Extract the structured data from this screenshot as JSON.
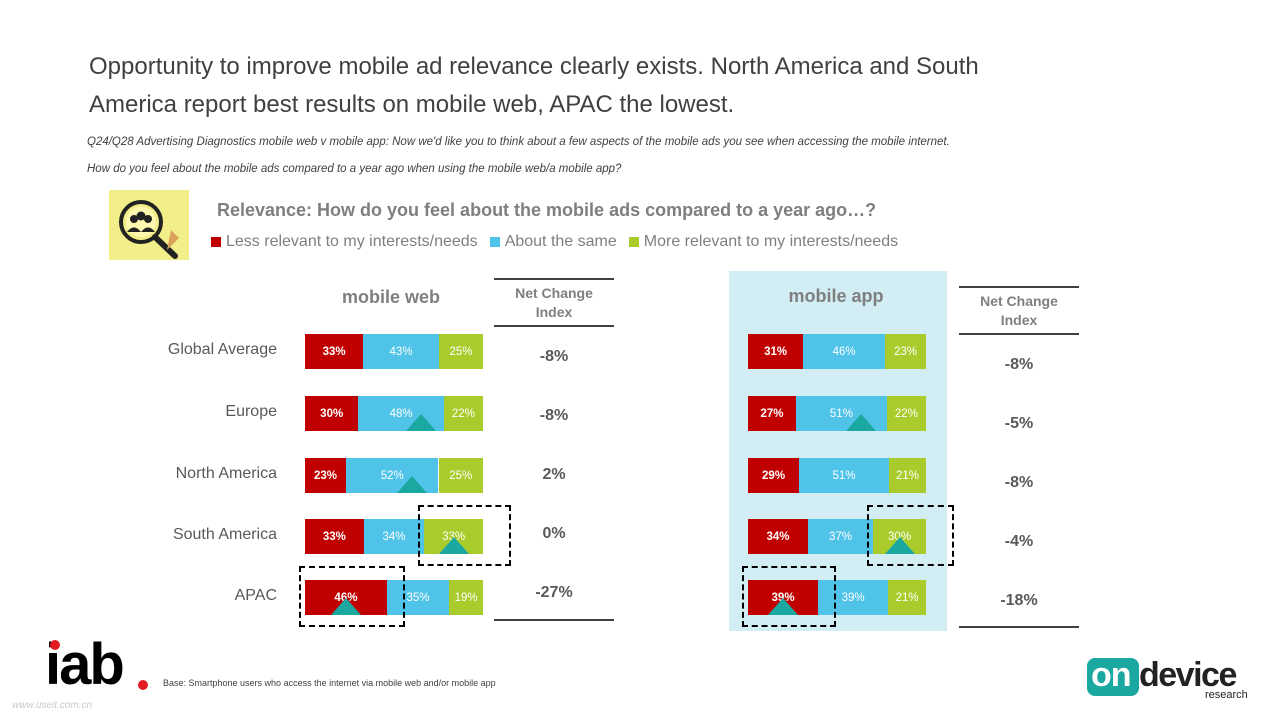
{
  "title_line1": "Opportunity to improve mobile ad relevance clearly exists. North America and South",
  "title_line2": "America report best results on mobile web, APAC the lowest.",
  "question_line1": "Q24/Q28 Advertising Diagnostics mobile web v mobile app: Now we'd like you to think about a few aspects of the mobile ads you see when accessing the mobile internet.",
  "question_line2": "How do you feel about the mobile ads compared to a year ago when using the mobile web/a mobile app?",
  "chart_title": "Relevance: How do you feel about the mobile ads compared to a year ago…?",
  "legend": [
    {
      "label": "Less relevant to my interests/needs",
      "color": "#c00000"
    },
    {
      "label": "About the same",
      "color": "#4fc3e8"
    },
    {
      "label": "More relevant to my interests/needs",
      "color": "#a9cc2c"
    }
  ],
  "nci_header_line1": "Net Change",
  "nci_header_line2": "Index",
  "base_text": "Base: Smartphone users who access the internet via mobile web and/or mobile app",
  "watermark": "www.useit.com.cn",
  "logo_left": "iab",
  "logo_right_main": "device",
  "logo_right_on": "on",
  "logo_right_sub": "research",
  "chart_data": [
    {
      "type": "bar",
      "stacked": true,
      "orientation": "horizontal",
      "title": "mobile web",
      "categories": [
        "Global Average",
        "Europe",
        "North America",
        "South America",
        "APAC"
      ],
      "series": [
        {
          "name": "Less relevant to my interests/needs",
          "values": [
            33,
            30,
            23,
            33,
            46
          ],
          "labels": [
            "33%",
            "30%",
            "23%",
            "33%",
            "46%"
          ]
        },
        {
          "name": "About the same",
          "values": [
            43,
            48,
            52,
            34,
            35
          ],
          "labels": [
            "43%",
            "48%",
            "52%",
            "34%",
            "35%"
          ]
        },
        {
          "name": "More relevant to my interests/needs",
          "values": [
            25,
            22,
            25,
            33,
            19
          ],
          "labels": [
            "25%",
            "22%",
            "25%",
            "33%",
            "19%"
          ]
        }
      ],
      "net_change_index": [
        "-8%",
        "-8%",
        "2%",
        "0%",
        "-27%"
      ],
      "up_markers": [
        null,
        "About the same",
        "About the same",
        "More relevant to my interests/needs",
        "Less relevant to my interests/needs"
      ],
      "highlighted": [
        "South America:More relevant to my interests/needs",
        "APAC:Less relevant to my interests/needs"
      ]
    },
    {
      "type": "bar",
      "stacked": true,
      "orientation": "horizontal",
      "title": "mobile app",
      "categories": [
        "Global Average",
        "Europe",
        "North America",
        "South America",
        "APAC"
      ],
      "series": [
        {
          "name": "Less relevant to my interests/needs",
          "values": [
            31,
            27,
            29,
            34,
            39
          ],
          "labels": [
            "31%",
            "27%",
            "29%",
            "34%",
            "39%"
          ]
        },
        {
          "name": "About the same",
          "values": [
            46,
            51,
            51,
            37,
            39
          ],
          "labels": [
            "46%",
            "51%",
            "51%",
            "37%",
            "39%"
          ]
        },
        {
          "name": "More relevant to my interests/needs",
          "values": [
            23,
            22,
            21,
            30,
            21
          ],
          "labels": [
            "23%",
            "22%",
            "21%",
            "30%",
            "21%"
          ]
        }
      ],
      "net_change_index": [
        "-8%",
        "-5%",
        "-8%",
        "-4%",
        "-18%"
      ],
      "up_markers": [
        null,
        "About the same",
        null,
        "More relevant to my interests/needs",
        "Less relevant to my interests/needs"
      ],
      "highlighted": [
        "South America:More relevant to my interests/needs",
        "APAC:Less relevant to my interests/needs"
      ]
    }
  ]
}
